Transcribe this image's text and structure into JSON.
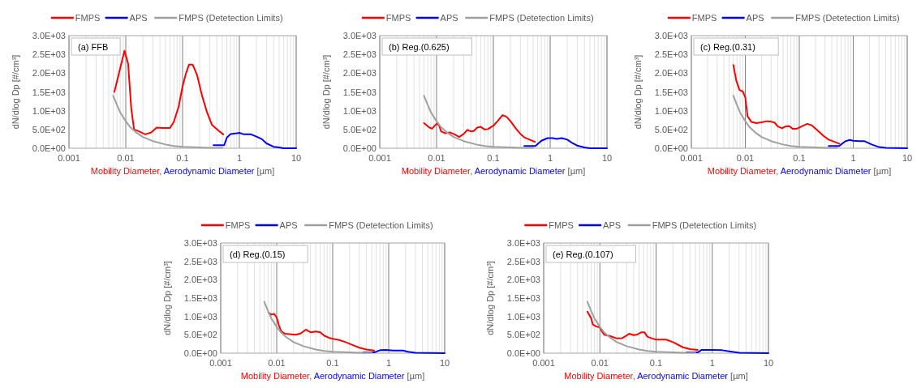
{
  "chart_data": [
    {
      "type": "line",
      "annotations": [
        "(a) FFB"
      ],
      "xlabel": "Mobility Diameter, Aerodynamic Diameter [µm]",
      "ylabel": "dN/dlog Dp [#/cm³]",
      "log": "x",
      "grid": "x",
      "legend": "top",
      "xlim": [
        0.001,
        10
      ],
      "ylim": [
        0,
        3000
      ],
      "xticks": [
        0.001,
        0.01,
        0.1,
        1,
        10
      ],
      "yticks": [
        {
          "value": 0,
          "label": "0.0E+00"
        },
        {
          "value": 500,
          "label": "5.0E+02"
        },
        {
          "value": 1000,
          "label": "1.0E+03"
        },
        {
          "value": 1500,
          "label": "1.5E+03"
        },
        {
          "value": 2000,
          "label": "2.0E+03"
        },
        {
          "value": 2500,
          "label": "2.5E+03"
        },
        {
          "value": 3000,
          "label": "3.0E+03"
        }
      ],
      "series": [
        {
          "name": "FMPS",
          "color": "#ff0000",
          "x": [
            0.0063,
            0.0095,
            0.011,
            0.0125,
            0.014,
            0.017,
            0.022,
            0.028,
            0.035,
            0.045,
            0.06,
            0.07,
            0.085,
            0.1,
            0.115,
            0.13,
            0.15,
            0.18,
            0.22,
            0.27,
            0.33,
            0.42,
            0.52
          ],
          "values": [
            1500,
            2600,
            2250,
            1050,
            500,
            450,
            370,
            420,
            550,
            540,
            540,
            700,
            1100,
            1650,
            2000,
            2230,
            2230,
            1950,
            1400,
            950,
            620,
            480,
            370
          ]
        },
        {
          "name": "APS",
          "color": "#0000ff",
          "x": [
            0.35,
            0.54,
            0.6,
            0.7,
            0.9,
            1.0,
            1.2,
            1.6,
            2.0,
            2.5,
            3,
            4,
            5,
            6,
            10
          ],
          "values": [
            80,
            80,
            280,
            380,
            400,
            410,
            370,
            370,
            310,
            240,
            130,
            40,
            20,
            0,
            0
          ]
        },
        {
          "name": "FMPS (Detetection Limits)",
          "color": "#a0a0a0",
          "x": [
            0.006,
            0.007,
            0.008,
            0.01,
            0.012,
            0.015,
            0.02,
            0.03,
            0.05,
            0.07,
            0.1,
            0.2,
            0.3,
            0.5
          ],
          "values": [
            1400,
            1150,
            950,
            720,
            560,
            430,
            300,
            190,
            100,
            60,
            40,
            20,
            10,
            10
          ]
        }
      ]
    },
    {
      "type": "line",
      "annotations": [
        "(b) Reg.(0.625)"
      ],
      "xlabel": "Mobility Diameter, Aerodynamic Diameter [µm]",
      "ylabel": "dN/dlog Dp [#/cm³]",
      "log": "x",
      "grid": "x",
      "legend": "top",
      "xlim": [
        0.001,
        10
      ],
      "ylim": [
        0,
        3000
      ],
      "xticks": [
        0.001,
        0.01,
        0.1,
        1,
        10
      ],
      "yticks": [
        {
          "value": 0,
          "label": "0.0E+00"
        },
        {
          "value": 500,
          "label": "5.0E+02"
        },
        {
          "value": 1000,
          "label": "1.0E+03"
        },
        {
          "value": 1500,
          "label": "1.5E+03"
        },
        {
          "value": 2000,
          "label": "2.0E+03"
        },
        {
          "value": 2500,
          "label": "2.5E+03"
        },
        {
          "value": 3000,
          "label": "3.0E+03"
        }
      ],
      "series": [
        {
          "name": "FMPS",
          "color": "#ff0000",
          "x": [
            0.006,
            0.0075,
            0.0083,
            0.01,
            0.011,
            0.012,
            0.014,
            0.017,
            0.02,
            0.025,
            0.03,
            0.035,
            0.04,
            0.045,
            0.052,
            0.06,
            0.07,
            0.08,
            0.1,
            0.12,
            0.145,
            0.17,
            0.2,
            0.25,
            0.3,
            0.35,
            0.45,
            0.54
          ],
          "values": [
            670,
            550,
            520,
            650,
            620,
            450,
            400,
            420,
            380,
            300,
            380,
            490,
            450,
            460,
            550,
            570,
            500,
            510,
            600,
            730,
            880,
            840,
            720,
            520,
            380,
            290,
            220,
            170
          ]
        },
        {
          "name": "APS",
          "color": "#0000ff",
          "x": [
            0.35,
            0.55,
            0.7,
            0.9,
            1.1,
            1.3,
            1.6,
            2.0,
            2.5,
            3,
            4,
            5,
            10
          ],
          "values": [
            60,
            60,
            200,
            270,
            270,
            250,
            270,
            230,
            130,
            70,
            20,
            0,
            0
          ]
        },
        {
          "name": "FMPS (Detetection Limits)",
          "color": "#a0a0a0",
          "x": [
            0.006,
            0.007,
            0.008,
            0.01,
            0.012,
            0.015,
            0.02,
            0.03,
            0.05,
            0.07,
            0.1,
            0.2,
            0.3,
            0.5
          ],
          "values": [
            1400,
            1150,
            950,
            720,
            560,
            430,
            300,
            190,
            100,
            60,
            40,
            20,
            10,
            10
          ]
        }
      ]
    },
    {
      "type": "line",
      "annotations": [
        "(c) Reg.(0.31)"
      ],
      "xlabel": "Mobility Diameter, Aerodynamic Diameter [µm]",
      "ylabel": "dN/dlog Dp [#/cm³]",
      "log": "x",
      "grid": "x",
      "legend": "top",
      "xlim": [
        0.001,
        10
      ],
      "ylim": [
        0,
        3000
      ],
      "xticks": [
        0.001,
        0.01,
        0.1,
        1,
        10
      ],
      "yticks": [
        {
          "value": 0,
          "label": "0.0E+00"
        },
        {
          "value": 500,
          "label": "5.0E+02"
        },
        {
          "value": 1000,
          "label": "1.0E+03"
        },
        {
          "value": 1500,
          "label": "1.5E+03"
        },
        {
          "value": 2000,
          "label": "2.0E+03"
        },
        {
          "value": 2500,
          "label": "2.5E+03"
        },
        {
          "value": 3000,
          "label": "3.0E+03"
        }
      ],
      "series": [
        {
          "name": "FMPS",
          "color": "#ff0000",
          "x": [
            0.006,
            0.0068,
            0.0078,
            0.009,
            0.01,
            0.011,
            0.013,
            0.016,
            0.02,
            0.025,
            0.03,
            0.035,
            0.04,
            0.048,
            0.055,
            0.065,
            0.075,
            0.09,
            0.11,
            0.14,
            0.17,
            0.22,
            0.28,
            0.35,
            0.45,
            0.55
          ],
          "values": [
            2220,
            1800,
            1550,
            1510,
            1350,
            850,
            700,
            670,
            690,
            720,
            710,
            680,
            580,
            530,
            580,
            590,
            520,
            520,
            580,
            650,
            610,
            470,
            330,
            230,
            170,
            120
          ]
        },
        {
          "name": "APS",
          "color": "#0000ff",
          "x": [
            0.35,
            0.55,
            0.7,
            0.85,
            1.0,
            1.3,
            1.6,
            2.2,
            3,
            4,
            10
          ],
          "values": [
            60,
            60,
            180,
            220,
            200,
            190,
            190,
            100,
            30,
            10,
            0
          ]
        },
        {
          "name": "FMPS (Detetection Limits)",
          "color": "#a0a0a0",
          "x": [
            0.006,
            0.007,
            0.008,
            0.01,
            0.012,
            0.015,
            0.02,
            0.03,
            0.05,
            0.07,
            0.1,
            0.2,
            0.3,
            0.5
          ],
          "values": [
            1400,
            1150,
            950,
            720,
            560,
            430,
            300,
            190,
            100,
            60,
            40,
            20,
            10,
            10
          ]
        }
      ]
    },
    {
      "type": "line",
      "annotations": [
        "(d) Reg.(0.15)"
      ],
      "xlabel": "Mobility Diameter, Aerodynamic Diameter [µm]",
      "ylabel": "dN/dlog Dp [#/cm³]",
      "log": "x",
      "grid": "x",
      "legend": "top",
      "xlim": [
        0.001,
        10
      ],
      "ylim": [
        0,
        3000
      ],
      "xticks": [
        0.001,
        0.01,
        0.1,
        1,
        10
      ],
      "yticks": [
        {
          "value": 0,
          "label": "0.0E+00"
        },
        {
          "value": 500,
          "label": "5.0E+02"
        },
        {
          "value": 1000,
          "label": "1.0E+03"
        },
        {
          "value": 1500,
          "label": "1.5E+03"
        },
        {
          "value": 2000,
          "label": "2.0E+03"
        },
        {
          "value": 2500,
          "label": "2.5E+03"
        },
        {
          "value": 3000,
          "label": "3.0E+03"
        }
      ],
      "series": [
        {
          "name": "FMPS",
          "color": "#ff0000",
          "x": [
            0.0072,
            0.008,
            0.009,
            0.01,
            0.011,
            0.012,
            0.014,
            0.017,
            0.022,
            0.027,
            0.033,
            0.04,
            0.05,
            0.06,
            0.07,
            0.085,
            0.1,
            0.13,
            0.17,
            0.22,
            0.3,
            0.4,
            0.55
          ],
          "values": [
            1100,
            1050,
            1070,
            970,
            750,
            600,
            530,
            520,
            500,
            540,
            640,
            570,
            590,
            570,
            480,
            420,
            390,
            360,
            300,
            230,
            150,
            100,
            70
          ]
        },
        {
          "name": "APS",
          "color": "#0000ff",
          "x": [
            0.35,
            0.55,
            0.7,
            0.9,
            1.2,
            1.8,
            2.2,
            3,
            10
          ],
          "values": [
            20,
            20,
            80,
            90,
            70,
            70,
            40,
            10,
            0
          ]
        },
        {
          "name": "FMPS (Detetection Limits)",
          "color": "#a0a0a0",
          "x": [
            0.006,
            0.007,
            0.008,
            0.01,
            0.012,
            0.015,
            0.02,
            0.03,
            0.05,
            0.07,
            0.1,
            0.2,
            0.3,
            0.5
          ],
          "values": [
            1400,
            1150,
            950,
            720,
            560,
            430,
            300,
            190,
            100,
            60,
            40,
            20,
            10,
            10
          ]
        }
      ]
    },
    {
      "type": "line",
      "annotations": [
        "(e) Reg.(0.107)"
      ],
      "xlabel": "Mobility Diameter, Aerodynamic Diameter [µm]",
      "ylabel": "dN/dlog Dp [#/cm³]",
      "log": "x",
      "grid": "x",
      "legend": "top",
      "xlim": [
        0.001,
        10
      ],
      "ylim": [
        0,
        3000
      ],
      "xticks": [
        0.001,
        0.01,
        0.1,
        1,
        10
      ],
      "yticks": [
        {
          "value": 0,
          "label": "0.0E+00"
        },
        {
          "value": 500,
          "label": "5.0E+02"
        },
        {
          "value": 1000,
          "label": "1.0E+03"
        },
        {
          "value": 1500,
          "label": "1.5E+03"
        },
        {
          "value": 2000,
          "label": "2.0E+03"
        },
        {
          "value": 2500,
          "label": "2.5E+03"
        },
        {
          "value": 3000,
          "label": "3.0E+03"
        }
      ],
      "series": [
        {
          "name": "FMPS",
          "color": "#ff0000",
          "x": [
            0.006,
            0.007,
            0.0075,
            0.0085,
            0.01,
            0.011,
            0.012,
            0.015,
            0.02,
            0.025,
            0.03,
            0.033,
            0.04,
            0.045,
            0.055,
            0.062,
            0.07,
            0.085,
            0.1,
            0.15,
            0.2,
            0.3,
            0.4,
            0.55
          ],
          "values": [
            1130,
            950,
            780,
            730,
            700,
            580,
            500,
            470,
            400,
            410,
            480,
            530,
            490,
            500,
            570,
            570,
            450,
            400,
            370,
            370,
            300,
            160,
            110,
            90
          ]
        },
        {
          "name": "APS",
          "color": "#0000ff",
          "x": [
            0.35,
            0.55,
            0.65,
            1.0,
            1.5,
            2,
            3,
            10
          ],
          "values": [
            20,
            20,
            90,
            90,
            80,
            50,
            10,
            0
          ]
        },
        {
          "name": "FMPS (Detetection Limits)",
          "color": "#a0a0a0",
          "x": [
            0.006,
            0.007,
            0.008,
            0.01,
            0.012,
            0.015,
            0.02,
            0.03,
            0.05,
            0.07,
            0.1,
            0.2,
            0.3,
            0.5
          ],
          "values": [
            1400,
            1150,
            950,
            720,
            560,
            430,
            300,
            190,
            100,
            60,
            40,
            20,
            10,
            10
          ]
        }
      ]
    }
  ]
}
